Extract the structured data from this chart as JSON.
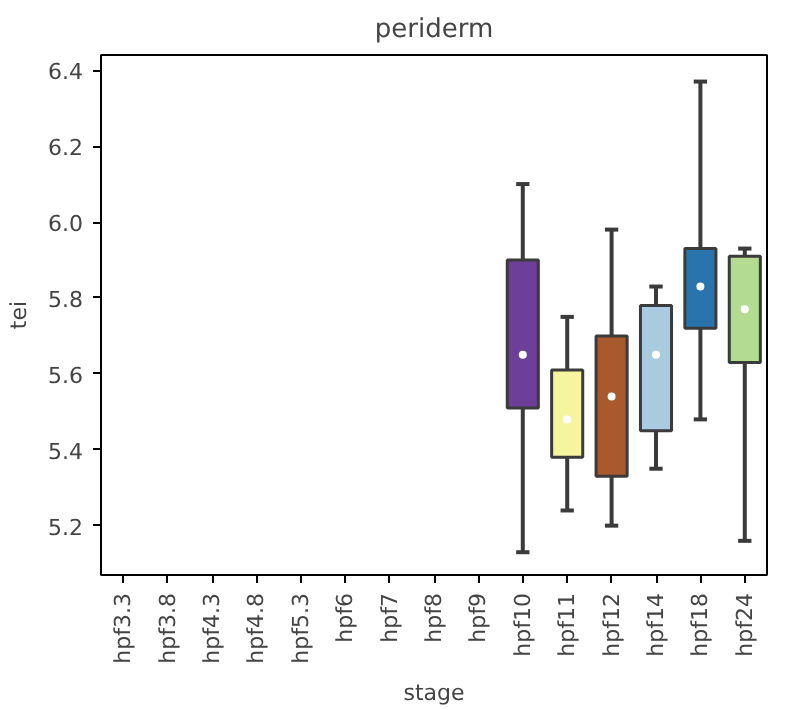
{
  "chart_data": {
    "type": "box",
    "title": "periderm",
    "xlabel": "stage",
    "ylabel": "tei",
    "categories": [
      "hpf3.3",
      "hpf3.8",
      "hpf4.3",
      "hpf4.8",
      "hpf5.3",
      "hpf6",
      "hpf7",
      "hpf8",
      "hpf9",
      "hpf10",
      "hpf11",
      "hpf12",
      "hpf14",
      "hpf18",
      "hpf24"
    ],
    "colors": [
      null,
      null,
      null,
      null,
      null,
      null,
      null,
      null,
      null,
      "#6d3f98",
      "#f5f5a0",
      "#a85a2e",
      "#a9cbe0",
      "#2a74ad",
      "#b4db92"
    ],
    "boxes": [
      null,
      null,
      null,
      null,
      null,
      null,
      null,
      null,
      null,
      {
        "low": 5.13,
        "q1": 5.51,
        "median": 5.65,
        "q3": 5.9,
        "high": 6.1
      },
      {
        "low": 5.24,
        "q1": 5.38,
        "median": 5.48,
        "q3": 5.61,
        "high": 5.75
      },
      {
        "low": 5.2,
        "q1": 5.33,
        "median": 5.54,
        "q3": 5.7,
        "high": 5.98
      },
      {
        "low": 5.35,
        "q1": 5.45,
        "median": 5.65,
        "q3": 5.78,
        "high": 5.83
      },
      {
        "low": 5.48,
        "q1": 5.72,
        "median": 5.83,
        "q3": 5.93,
        "high": 6.37
      },
      {
        "low": 5.16,
        "q1": 5.63,
        "median": 5.77,
        "q3": 5.91,
        "high": 5.93
      }
    ],
    "ylim": [
      5.07,
      6.44
    ],
    "yticks": [
      5.2,
      5.4,
      5.6,
      5.8,
      {
        "value": 6,
        "label": "6.0"
      },
      6.2,
      6.4
    ],
    "grid": false
  }
}
